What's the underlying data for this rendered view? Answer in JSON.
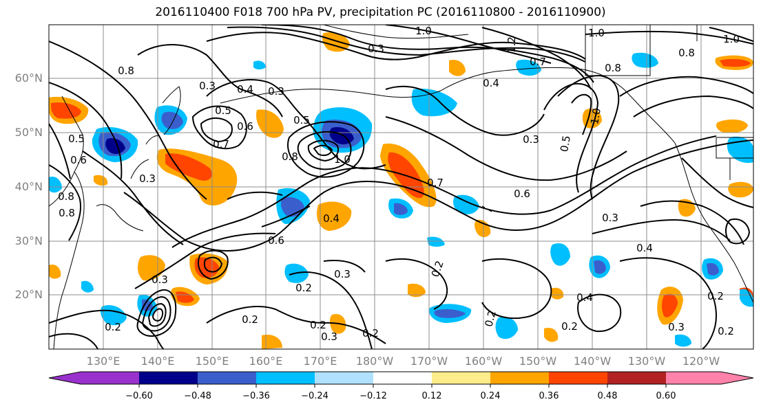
{
  "title": "2016110400 F018 700 hPa PV, precipitation PC (2016110800 - 2016110900)",
  "lat_labels": [
    "60°N",
    "50°N",
    "40°N",
    "30°N",
    "20°N"
  ],
  "lon_labels": [
    "130°E",
    "140°E",
    "150°E",
    "160°E",
    "170°E",
    "180°W",
    "170°W",
    "160°W",
    "150°W",
    "140°W",
    "130°W",
    "120°W"
  ],
  "colorbar": {
    "labels": [
      "−0.60",
      "−0.48",
      "−0.36",
      "−0.24",
      "−0.12",
      "0.12",
      "0.24",
      "0.36",
      "0.48",
      "0.60"
    ],
    "colors": [
      "#9932cc",
      "#00008b",
      "#3a5fcd",
      "#00bfff",
      "#b0e2ff",
      "#ffffff",
      "#ffec8b",
      "#ffa500",
      "#ff4500",
      "#b22222",
      "#ff82ab"
    ]
  },
  "contour_labels": [
    "1.0",
    "1.0",
    "1.2",
    "1.0",
    "0.8",
    "0.8",
    "0.3",
    "0.7",
    "0.4",
    "0.8",
    "0.3",
    "0.4",
    "0.3",
    "0.5",
    "0.6",
    "0.5",
    "0.7",
    "0.8",
    "0.5",
    "0.6",
    "1.0",
    "0.3",
    "0.7",
    "0.6",
    "0.3",
    "0.3",
    "0.4",
    "0.6",
    "0.2",
    "0.3",
    "0.2",
    "0.3",
    "0.2",
    "0.2",
    "0.2",
    "0.8",
    "0.8",
    "0.2",
    "0.3",
    "0.2",
    "0.4",
    "0.4",
    "0.2",
    "0.2",
    "0.3",
    "0.2",
    "1.0",
    "0.5"
  ]
}
